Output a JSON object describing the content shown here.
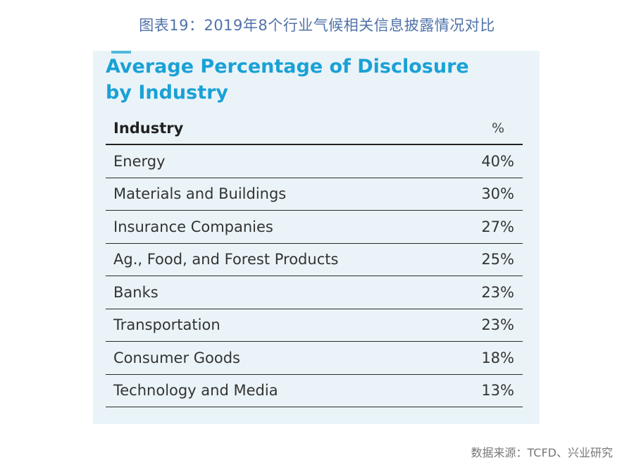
{
  "figure_caption": "图表19：2019年8个行业气候相关信息披露情况对比",
  "source_note": "数据来源：TCFD、兴业研究",
  "colors": {
    "panel_bg": "#eaf4f8",
    "title": "#1aa1d6",
    "caption": "#4f72a8"
  },
  "chart_data": {
    "type": "table",
    "title_lines": [
      "Average Percentage of Disclosure",
      "by Industry"
    ],
    "columns": [
      "Industry",
      "%"
    ],
    "rows": [
      {
        "industry": "Energy",
        "value": "40%"
      },
      {
        "industry": "Materials and Buildings",
        "value": "30%"
      },
      {
        "industry": "Insurance Companies",
        "value": "27%"
      },
      {
        "industry": "Ag., Food, and Forest Products",
        "value": "25%"
      },
      {
        "industry": "Banks",
        "value": "23%"
      },
      {
        "industry": "Transportation",
        "value": "23%"
      },
      {
        "industry": "Consumer Goods",
        "value": "18%"
      },
      {
        "industry": "Technology and Media",
        "value": "13%"
      }
    ]
  }
}
